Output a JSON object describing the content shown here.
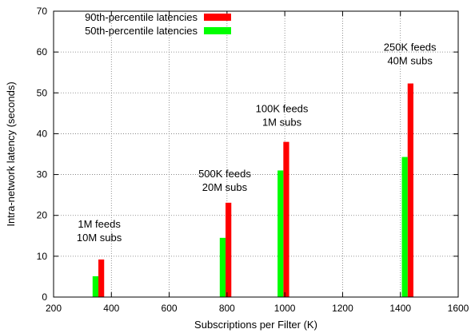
{
  "chart_data": {
    "type": "bar",
    "title": "",
    "xlabel": "Subscriptions per Filter (K)",
    "ylabel": "Intra-network latency (seconds)",
    "xlim": [
      200,
      1600
    ],
    "ylim": [
      0,
      70
    ],
    "xticks": [
      200,
      400,
      600,
      800,
      1000,
      1200,
      1400,
      1600
    ],
    "yticks": [
      0,
      10,
      20,
      30,
      40,
      50,
      60,
      70
    ],
    "grid": true,
    "legend_position": "top-left",
    "series": [
      {
        "name": "90th-percentile latencies",
        "color": "#ff0000",
        "points": [
          {
            "x": 365,
            "y": 9.2
          },
          {
            "x": 805,
            "y": 23.1
          },
          {
            "x": 1005,
            "y": 38.0
          },
          {
            "x": 1435,
            "y": 52.3
          }
        ]
      },
      {
        "name": "50th-percentile latencies",
        "color": "#00ff00",
        "points": [
          {
            "x": 345,
            "y": 5.1
          },
          {
            "x": 785,
            "y": 14.5
          },
          {
            "x": 985,
            "y": 31.0
          },
          {
            "x": 1415,
            "y": 34.3
          }
        ]
      }
    ],
    "annotations": [
      {
        "lines": [
          "1M feeds",
          "10M subs"
        ],
        "x": 358,
        "y": 17
      },
      {
        "lines": [
          "500K feeds",
          "20M subs"
        ],
        "x": 792,
        "y": 29.3
      },
      {
        "lines": [
          "100K feeds",
          "1M subs"
        ],
        "x": 990,
        "y": 45.3
      },
      {
        "lines": [
          "250K feeds",
          "40M subs"
        ],
        "x": 1433,
        "y": 60.3
      }
    ]
  }
}
